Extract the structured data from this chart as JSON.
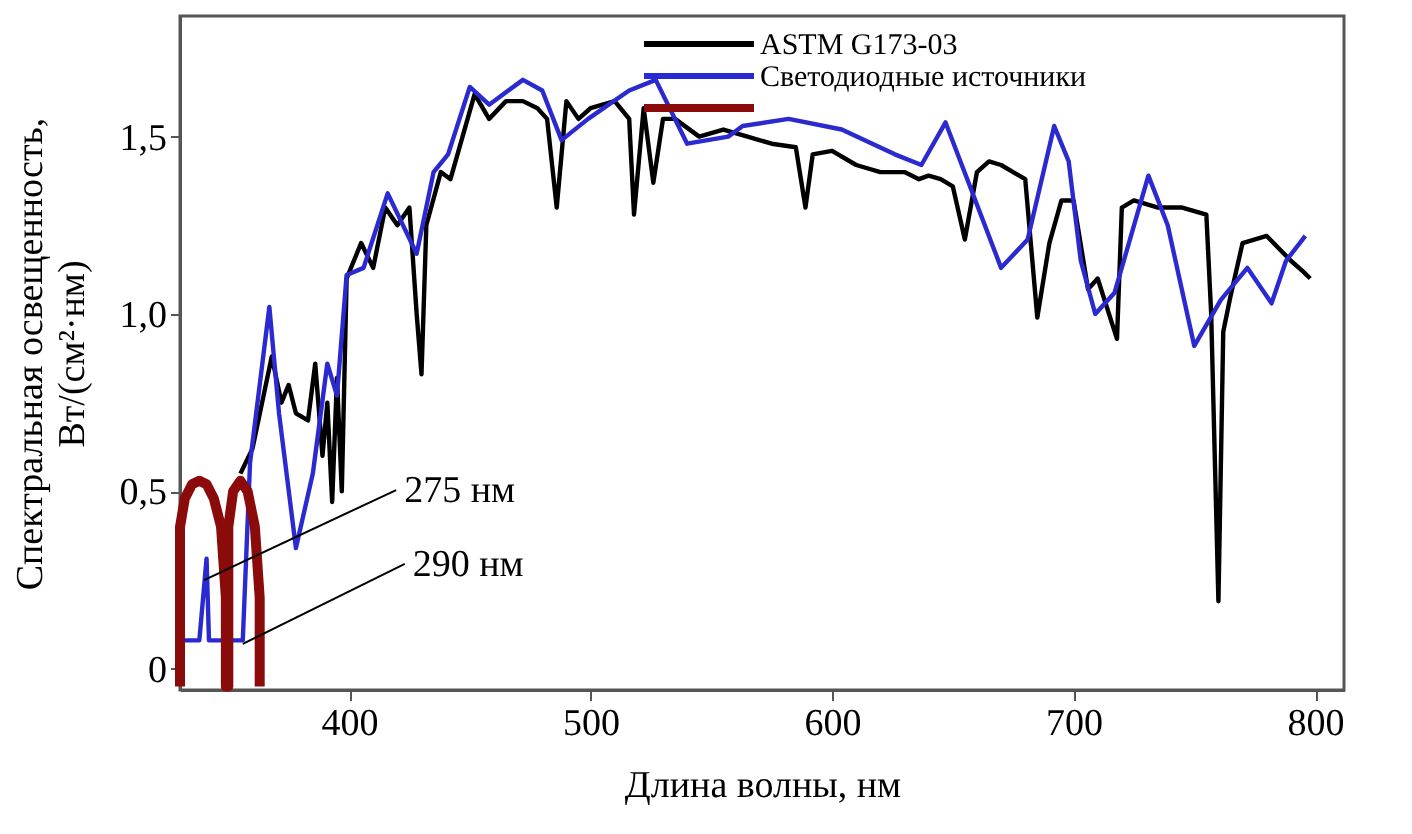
{
  "chart_data": {
    "type": "line",
    "xlabel": "Длина волны, нм",
    "ylabel": "Спектральная освещенность,\nВт/(см²·нм)",
    "xlim": [
      330,
      812
    ],
    "ylim": [
      -0.06,
      1.84
    ],
    "xticks": [
      400,
      500,
      600,
      700,
      800
    ],
    "yticks": [
      0,
      {
        "value": 0.5,
        "label": "0,5"
      },
      {
        "value": 1.0,
        "label": "1,0"
      },
      {
        "value": 1.5,
        "label": "1,5"
      }
    ],
    "grid": false,
    "legend": "top right",
    "marker": "none",
    "line_style": "solid",
    "series": [
      {
        "name": "ASTM G173-03",
        "color": "#000000",
        "x": [
          355,
          360,
          364,
          368,
          372,
          375,
          378,
          383,
          386,
          389,
          391,
          393,
          395,
          397,
          399,
          405,
          410,
          415,
          420,
          425,
          428,
          430,
          432,
          438,
          442,
          447,
          452,
          458,
          465,
          472,
          478,
          482,
          486,
          490,
          495,
          500,
          510,
          516,
          518,
          522,
          526,
          530,
          535,
          545,
          555,
          565,
          575,
          585,
          589,
          592,
          600,
          610,
          620,
          630,
          636,
          640,
          645,
          650,
          655,
          660,
          665,
          670,
          675,
          680,
          685,
          690,
          695,
          700,
          706,
          710,
          718,
          720,
          725,
          735,
          745,
          755,
          757,
          760,
          762,
          765,
          770,
          780,
          790,
          795,
          798
        ],
        "values": [
          0.55,
          0.62,
          0.75,
          0.88,
          0.75,
          0.8,
          0.72,
          0.7,
          0.86,
          0.6,
          0.75,
          0.47,
          0.82,
          0.5,
          1.1,
          1.2,
          1.13,
          1.3,
          1.25,
          1.3,
          1.0,
          0.83,
          1.25,
          1.4,
          1.38,
          1.5,
          1.62,
          1.55,
          1.6,
          1.6,
          1.58,
          1.55,
          1.3,
          1.6,
          1.55,
          1.58,
          1.6,
          1.55,
          1.28,
          1.58,
          1.37,
          1.55,
          1.55,
          1.5,
          1.52,
          1.5,
          1.48,
          1.47,
          1.3,
          1.45,
          1.46,
          1.42,
          1.4,
          1.4,
          1.38,
          1.39,
          1.38,
          1.36,
          1.21,
          1.4,
          1.43,
          1.42,
          1.4,
          1.38,
          0.99,
          1.2,
          1.32,
          1.32,
          1.07,
          1.1,
          0.93,
          1.3,
          1.32,
          1.3,
          1.3,
          1.28,
          1.0,
          0.19,
          0.95,
          1.05,
          1.2,
          1.22,
          1.15,
          1.12,
          1.1
        ]
      },
      {
        "name": "Светодиодные источники",
        "color": "#2a2ad0",
        "x": [
          331,
          338,
          341,
          342,
          350,
          356,
          359,
          367,
          371,
          378,
          385,
          391,
          395,
          399,
          406,
          416,
          428,
          435,
          441,
          450,
          458,
          472,
          480,
          488,
          499,
          516,
          527,
          540,
          557,
          563,
          582,
          604,
          626,
          637,
          647,
          656,
          670,
          681,
          692,
          698,
          703,
          709,
          717,
          731,
          739,
          750,
          761,
          772,
          782,
          788,
          796
        ],
        "values": [
          0.08,
          0.08,
          0.31,
          0.08,
          0.08,
          0.08,
          0.58,
          1.02,
          0.72,
          0.34,
          0.55,
          0.86,
          0.77,
          1.11,
          1.13,
          1.34,
          1.17,
          1.4,
          1.45,
          1.64,
          1.59,
          1.66,
          1.63,
          1.49,
          1.55,
          1.63,
          1.66,
          1.48,
          1.5,
          1.53,
          1.55,
          1.52,
          1.45,
          1.42,
          1.54,
          1.38,
          1.13,
          1.21,
          1.53,
          1.43,
          1.15,
          1.0,
          1.06,
          1.39,
          1.25,
          0.91,
          1.04,
          1.13,
          1.03,
          1.15,
          1.22
        ]
      },
      {
        "color": "#8b0a0a",
        "x": [
          330,
          330,
          332,
          335,
          338,
          341,
          344,
          347,
          349,
          349,
          350,
          350,
          352,
          355,
          358,
          361,
          363,
          363
        ],
        "values": [
          -0.05,
          0.4,
          0.48,
          0.52,
          0.53,
          0.52,
          0.48,
          0.4,
          0.2,
          -0.05,
          -0.05,
          0.4,
          0.5,
          0.53,
          0.5,
          0.4,
          0.2,
          -0.05
        ]
      }
    ],
    "annotations": [
      {
        "text": "275 нм",
        "x": 340,
        "y": 0.25
      },
      {
        "text": "290 нм",
        "x": 356,
        "y": 0.07
      }
    ]
  }
}
